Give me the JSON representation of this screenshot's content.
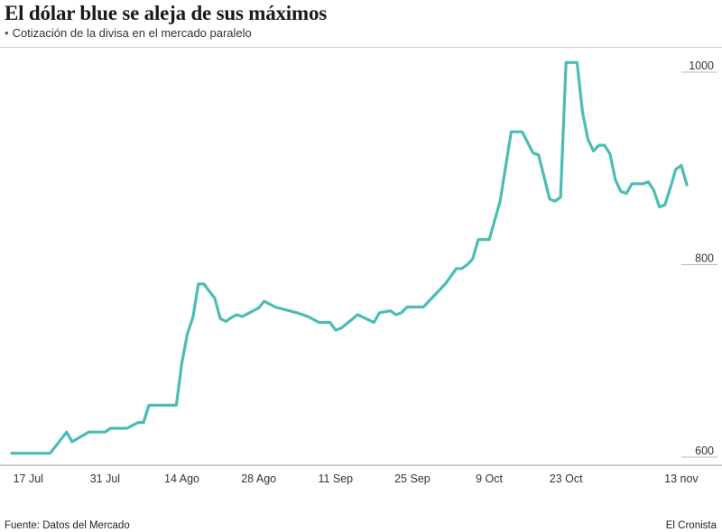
{
  "header": {
    "title": "El dólar blue se aleja de sus máximos",
    "subtitle": "Cotización de la divisa en el mercado paralelo",
    "subtitle_bullet": "•"
  },
  "footer": {
    "source": "Fuente: Datos del Mercado",
    "brand": "El Cronista"
  },
  "colors": {
    "line": "#4bbdb5",
    "grid": "#b8b8b8",
    "text": "#333333"
  },
  "chart_data": {
    "type": "line",
    "title": "El dólar blue se aleja de sus máximos",
    "subtitle": "Cotización de la divisa en el mercado paralelo",
    "xlabel": "",
    "ylabel": "",
    "ylim": [
      600,
      1040
    ],
    "yticks": [
      600,
      800,
      1000
    ],
    "xtick_labels": [
      "17 Jul",
      "31 Jul",
      "14 Ago",
      "28 Ago",
      "11  Sep",
      "25 Sep",
      "9 Oct",
      "23 Oct",
      "13 nov"
    ],
    "xtick_dates": [
      "2023-07-17",
      "2023-07-31",
      "2023-08-14",
      "2023-08-28",
      "2023-09-11",
      "2023-09-25",
      "2023-10-09",
      "2023-10-23",
      "2023-11-13"
    ],
    "grid": "horizontal at y ticks",
    "y_axis_position": "right",
    "series": [
      {
        "name": "",
        "points": [
          [
            "2023-07-14",
            604
          ],
          [
            "2023-07-17",
            604
          ],
          [
            "2023-07-21",
            604
          ],
          [
            "2023-07-24",
            626
          ],
          [
            "2023-07-25",
            616
          ],
          [
            "2023-07-28",
            626
          ],
          [
            "2023-07-31",
            626
          ],
          [
            "2023-08-01",
            630
          ],
          [
            "2023-08-04",
            630
          ],
          [
            "2023-08-06",
            636
          ],
          [
            "2023-08-07",
            636
          ],
          [
            "2023-08-08",
            654
          ],
          [
            "2023-08-10",
            654
          ],
          [
            "2023-08-13",
            654
          ],
          [
            "2023-08-14",
            698
          ],
          [
            "2023-08-15",
            728
          ],
          [
            "2023-08-16",
            745
          ],
          [
            "2023-08-17",
            780
          ],
          [
            "2023-08-18",
            780
          ],
          [
            "2023-08-20",
            765
          ],
          [
            "2023-08-21",
            744
          ],
          [
            "2023-08-22",
            741
          ],
          [
            "2023-08-23",
            745
          ],
          [
            "2023-08-24",
            748
          ],
          [
            "2023-08-25",
            746
          ],
          [
            "2023-08-28",
            755
          ],
          [
            "2023-08-29",
            762
          ],
          [
            "2023-08-31",
            756
          ],
          [
            "2023-09-04",
            750
          ],
          [
            "2023-09-06",
            746
          ],
          [
            "2023-09-08",
            740
          ],
          [
            "2023-09-10",
            740
          ],
          [
            "2023-09-11",
            732
          ],
          [
            "2023-09-12",
            734
          ],
          [
            "2023-09-14",
            743
          ],
          [
            "2023-09-15",
            748
          ],
          [
            "2023-09-18",
            740
          ],
          [
            "2023-09-19",
            750
          ],
          [
            "2023-09-21",
            752
          ],
          [
            "2023-09-22",
            748
          ],
          [
            "2023-09-23",
            750
          ],
          [
            "2023-09-24",
            756
          ],
          [
            "2023-09-27",
            756
          ],
          [
            "2023-10-01",
            780
          ],
          [
            "2023-10-03",
            796
          ],
          [
            "2023-10-04",
            796
          ],
          [
            "2023-10-05",
            800
          ],
          [
            "2023-10-06",
            806
          ],
          [
            "2023-10-07",
            826
          ],
          [
            "2023-10-09",
            826
          ],
          [
            "2023-10-11",
            866
          ],
          [
            "2023-10-13",
            938
          ],
          [
            "2023-10-15",
            938
          ],
          [
            "2023-10-17",
            916
          ],
          [
            "2023-10-18",
            914
          ],
          [
            "2023-10-20",
            868
          ],
          [
            "2023-10-21",
            866
          ],
          [
            "2023-10-22",
            870
          ],
          [
            "2023-10-23",
            1010
          ],
          [
            "2023-10-25",
            1010
          ],
          [
            "2023-10-26",
            958
          ],
          [
            "2023-10-27",
            930
          ],
          [
            "2023-10-28",
            918
          ],
          [
            "2023-10-29",
            924
          ],
          [
            "2023-10-30",
            924
          ],
          [
            "2023-10-31",
            915
          ],
          [
            "2023-11-01",
            888
          ],
          [
            "2023-11-02",
            876
          ],
          [
            "2023-11-03",
            874
          ],
          [
            "2023-11-04",
            884
          ],
          [
            "2023-11-05",
            884
          ],
          [
            "2023-11-06",
            884
          ],
          [
            "2023-11-07",
            886
          ],
          [
            "2023-11-08",
            877
          ],
          [
            "2023-11-09",
            860
          ],
          [
            "2023-11-10",
            862
          ],
          [
            "2023-11-11",
            880
          ],
          [
            "2023-11-12",
            899
          ],
          [
            "2023-11-13",
            903
          ],
          [
            "2023-11-14",
            883
          ]
        ]
      }
    ]
  }
}
